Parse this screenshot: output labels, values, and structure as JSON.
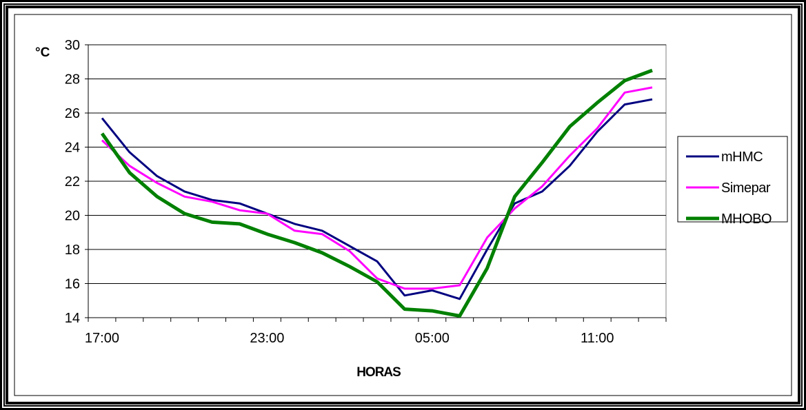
{
  "chart_data": {
    "type": "line",
    "x": [
      "17:00",
      "18:00",
      "19:00",
      "20:00",
      "21:00",
      "22:00",
      "23:00",
      "00:00",
      "01:00",
      "02:00",
      "03:00",
      "04:00",
      "05:00",
      "06:00",
      "07:00",
      "08:00",
      "09:00",
      "10:00",
      "11:00",
      "12:00",
      "13:00"
    ],
    "x_tick_labels": [
      "17:00",
      "23:00",
      "05:00",
      "11:00"
    ],
    "series": [
      {
        "name": "mHMC",
        "color": "#000080",
        "values": [
          25.7,
          23.7,
          22.3,
          21.4,
          20.9,
          20.7,
          20.1,
          19.5,
          19.1,
          18.2,
          17.3,
          15.3,
          15.6,
          15.1,
          18.0,
          20.7,
          21.4,
          22.9,
          24.9,
          26.5,
          26.8
        ]
      },
      {
        "name": "Simepar",
        "color": "#ff00ff",
        "values": [
          24.4,
          22.9,
          21.9,
          21.1,
          20.8,
          20.3,
          20.1,
          19.1,
          18.9,
          17.9,
          16.3,
          15.7,
          15.7,
          15.9,
          18.7,
          20.4,
          21.7,
          23.5,
          25.1,
          27.2,
          27.5
        ]
      },
      {
        "name": "MHOBO",
        "color": "#008000",
        "values": [
          24.8,
          22.5,
          21.1,
          20.1,
          19.6,
          19.5,
          18.9,
          18.4,
          17.8,
          17.0,
          16.1,
          14.5,
          14.4,
          14.1,
          16.9,
          21.1,
          23.1,
          25.2,
          26.6,
          27.9,
          28.5
        ]
      }
    ],
    "ylim": [
      14,
      30
    ],
    "y_ticks": [
      14,
      16,
      18,
      20,
      22,
      24,
      26,
      28,
      30
    ],
    "ylabel": "°C",
    "xlabel": "HORAS",
    "grid": "horizontal",
    "legend_position": "right"
  }
}
